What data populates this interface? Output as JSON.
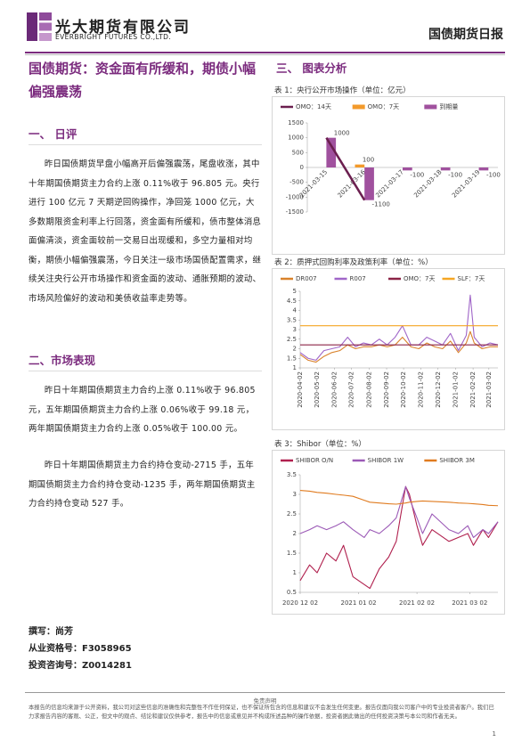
{
  "header": {
    "company": "光大期货有限公司",
    "company_en": "EVERBRIGHT FUTURES CO.,LTD.",
    "report": "国债期货日报"
  },
  "article": {
    "title": "国债期货：资金面有所缓和，期债小幅偏强震荡",
    "sections": [
      {
        "heading": "一、 日评",
        "paragraphs": [
          "昨日国债期货早盘小幅高开后偏强震荡，尾盘收涨，其中十年期国债期货主力合约上涨 0.11%收于 96.805 元。央行进行 100 亿元 7 天期逆回购操作，净回笼 1000 亿元，大多数期限资金利率上行回落，资金面有所缓和，债市整体消息面偏清淡，资金面较前一交易日出现缓和，多空力量相对均衡，期债小幅偏强震荡，今日关注一级市场国债配置需求，继续关注央行公开市场操作和资金面的波动、通胀预期的波动、市场风险偏好的波动和美债收益率走势等。"
        ]
      },
      {
        "heading": "二、市场表现",
        "paragraphs": [
          "昨日十年期国债期货主力合约上涨 0.11%收于 96.805 元，五年期国债期货主力合约上涨 0.06%收于 99.18 元，两年期国债期货主力合约上涨 0.05%收于 100.00 元。",
          "昨日十年期国债期货主力合约持仓变动-2715 手，五年期国债期货主力合约持仓变动-1235 手，两年期国债期货主力合约持仓变动 527 手。"
        ]
      }
    ]
  },
  "authors": [
    "撰写：尚芳",
    "从业资格号：F3058965",
    "投资咨询号：Z0014281"
  ],
  "charts_heading": "三、 图表分析",
  "chart_data": [
    {
      "type": "bar",
      "title": "表 1：央行公开市场操作（单位：亿元）",
      "categories": [
        "2021-03-15",
        "2021-03-16",
        "2021-03-17",
        "2021-03-18",
        "2021-03-19"
      ],
      "series": [
        {
          "name": "OMO：14天",
          "type": "line",
          "color": "#6b1f4f",
          "values": [
            1000,
            -1100,
            null,
            null,
            null
          ]
        },
        {
          "name": "OMO：7天",
          "type": "bar",
          "color": "#f39a2b",
          "values": [
            null,
            100,
            null,
            null,
            null
          ],
          "data_labels": true
        },
        {
          "name": "到期量",
          "type": "bar",
          "color": "#a0519e",
          "values": [
            1000,
            -1100,
            -100,
            -100,
            -100
          ],
          "data_labels": true
        }
      ],
      "ylim": [
        -1500,
        1500
      ],
      "yticks": [
        1500,
        1000,
        500,
        0,
        -500,
        -1000,
        -1500
      ]
    },
    {
      "type": "line",
      "title": "表 2：质押式回购利率及政策利率（单位：%）",
      "x": [
        "2020-04-02",
        "2020-04-16",
        "2020-04-30",
        "2020-05-14",
        "2020-05-28",
        "2020-06-11",
        "2020-06-25",
        "2020-07-09",
        "2020-07-23",
        "2020-08-06",
        "2020-08-20",
        "2020-09-03",
        "2020-09-17",
        "2020-09-30",
        "2020-10-15",
        "2020-10-29",
        "2020-11-12",
        "2020-11-26",
        "2020-12-10",
        "2020-12-24",
        "2021-01-07",
        "2021-01-21",
        "2021-01-28",
        "2021-02-04",
        "2021-02-18",
        "2021-03-04",
        "2021-03-18"
      ],
      "series": [
        {
          "name": "DR007",
          "color": "#d9822b",
          "values": [
            1.7,
            1.4,
            1.3,
            1.6,
            1.8,
            1.9,
            2.2,
            2.0,
            2.1,
            2.1,
            2.2,
            2.1,
            2.2,
            2.6,
            2.1,
            2.0,
            2.3,
            2.1,
            2.0,
            2.4,
            1.8,
            2.3,
            2.9,
            2.3,
            2.0,
            2.1,
            2.1
          ]
        },
        {
          "name": "R007",
          "color": "#a066c8",
          "values": [
            1.8,
            1.5,
            1.4,
            1.9,
            2.0,
            2.1,
            2.6,
            2.1,
            2.3,
            2.2,
            2.5,
            2.2,
            2.6,
            3.2,
            2.2,
            2.2,
            2.6,
            2.4,
            2.2,
            2.8,
            1.9,
            2.7,
            4.8,
            2.6,
            2.1,
            2.3,
            2.2
          ]
        },
        {
          "name": "OMO：7天",
          "color": "#8b2346",
          "values": [
            2.2,
            2.2,
            2.2,
            2.2,
            2.2,
            2.2,
            2.2,
            2.2,
            2.2,
            2.2,
            2.2,
            2.2,
            2.2,
            2.2,
            2.2,
            2.2,
            2.2,
            2.2,
            2.2,
            2.2,
            2.2,
            2.2,
            2.2,
            2.2,
            2.2,
            2.2,
            2.2
          ]
        },
        {
          "name": "SLF：7天",
          "color": "#f5a623",
          "values": [
            3.2,
            3.2,
            3.2,
            3.2,
            3.2,
            3.2,
            3.2,
            3.2,
            3.2,
            3.2,
            3.2,
            3.2,
            3.2,
            3.2,
            3.2,
            3.2,
            3.2,
            3.2,
            3.2,
            3.2,
            3.2,
            3.2,
            3.2,
            3.2,
            3.2,
            3.2,
            3.2
          ]
        }
      ],
      "ylim": [
        1,
        5
      ],
      "yticks": [
        5,
        4.5,
        4,
        3.5,
        3,
        2.5,
        2,
        1.5,
        1
      ],
      "xticks": [
        "2020-04-02",
        "2020-05-02",
        "2020-06-02",
        "2020-07-02",
        "2020-08-02",
        "2020-09-02",
        "2020-10-02",
        "2020-11-02",
        "2020-12-02",
        "2021-01-02",
        "2021-02-02",
        "2021-03-02"
      ]
    },
    {
      "type": "line",
      "title": "表 3：Shibor（单位：%）",
      "x": [
        "2020-12-02",
        "2020-12-07",
        "2020-12-11",
        "2020-12-16",
        "2020-12-21",
        "2020-12-25",
        "2020-12-30",
        "2021-01-05",
        "2021-01-08",
        "2021-01-13",
        "2021-01-18",
        "2021-01-22",
        "2021-01-27",
        "2021-01-29",
        "2021-02-02",
        "2021-02-05",
        "2021-02-10",
        "2021-02-19",
        "2021-02-24",
        "2021-03-01",
        "2021-03-04",
        "2021-03-09",
        "2021-03-12",
        "2021-03-17"
      ],
      "series": [
        {
          "name": "SHIBOR O/N",
          "color": "#b0204e",
          "values": [
            0.8,
            1.2,
            1.0,
            1.5,
            1.3,
            1.7,
            0.9,
            0.7,
            0.6,
            1.1,
            1.4,
            1.8,
            3.2,
            3.0,
            2.2,
            1.7,
            2.1,
            1.8,
            1.9,
            2.0,
            1.7,
            2.1,
            1.9,
            2.3
          ]
        },
        {
          "name": "SHIBOR 1W",
          "color": "#9b59b6",
          "values": [
            2.0,
            2.1,
            2.2,
            2.1,
            2.2,
            2.3,
            2.1,
            1.9,
            2.1,
            2.0,
            2.2,
            2.4,
            3.2,
            2.9,
            2.4,
            2.0,
            2.5,
            2.1,
            2.0,
            2.2,
            1.9,
            2.1,
            2.0,
            2.3
          ]
        },
        {
          "name": "SHIBOR 3M",
          "color": "#e07b1f",
          "values": [
            3.1,
            3.08,
            3.05,
            3.03,
            3.0,
            2.98,
            2.95,
            2.85,
            2.8,
            2.78,
            2.76,
            2.75,
            2.78,
            2.8,
            2.82,
            2.83,
            2.82,
            2.8,
            2.78,
            2.77,
            2.76,
            2.74,
            2.72,
            2.71
          ]
        }
      ],
      "ylim": [
        0.5,
        3.5
      ],
      "yticks": [
        3.5,
        3,
        2.5,
        2,
        1.5,
        1,
        0.5
      ],
      "xticks": [
        {
          "value": "2020-12-02",
          "label": "2020 12 02"
        },
        {
          "value": "2021-01-02",
          "label": "2021 01 02"
        },
        {
          "value": "2021-02-02",
          "label": "2021 02 02"
        },
        {
          "value": "2021-03-02",
          "label": "2021 03 02"
        }
      ]
    }
  ],
  "footer": {
    "heading": "免责声明",
    "text": "本报告的信息均来源于公开资料，我公司对这些信息的准确性和完整性不作任何保证，也不保证所包含的信息和建议不会发生任何变更。报告仅面向我公司客户中的专业投资者客户。我们已力求报告内容的客观、公正，但文中的观点、结论和建议仅供参考，报告中的信息或意见并不构成所述品种的操作依据，投资者据此做出的任何投资决策与本公司和作者无关。",
    "page": "1"
  }
}
